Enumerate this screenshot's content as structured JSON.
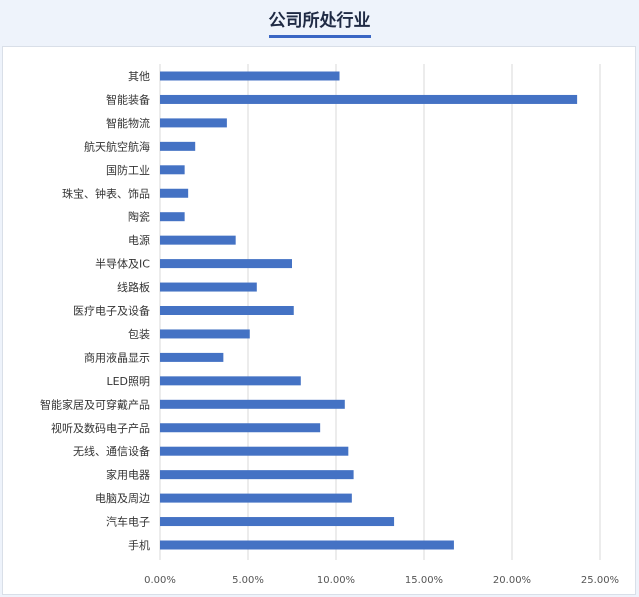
{
  "title": "公司所处行业",
  "chart_data": {
    "type": "bar",
    "orientation": "horizontal",
    "categories": [
      "其他",
      "智能装备",
      "智能物流",
      "航天航空航海",
      "国防工业",
      "珠宝、钟表、饰品",
      "陶瓷",
      "电源",
      "半导体及IC",
      "线路板",
      "医疗电子及设备",
      "包装",
      "商用液晶显示",
      "LED照明",
      "智能家居及可穿戴产品",
      "视听及数码电子产品",
      "无线、通信设备",
      "家用电器",
      "电脑及周边",
      "汽车电子",
      "手机"
    ],
    "values": [
      10.2,
      23.7,
      3.8,
      2.0,
      1.4,
      1.6,
      1.4,
      4.3,
      7.5,
      5.5,
      7.6,
      5.1,
      3.6,
      8.0,
      10.5,
      9.1,
      10.7,
      11.0,
      10.9,
      13.3,
      16.7
    ],
    "ticks": [
      "0.00%",
      "5.00%",
      "10.00%",
      "15.00%",
      "20.00%",
      "25.00%"
    ],
    "xlim": [
      0,
      25
    ],
    "grid": true,
    "bar_color": "#4472c4"
  }
}
